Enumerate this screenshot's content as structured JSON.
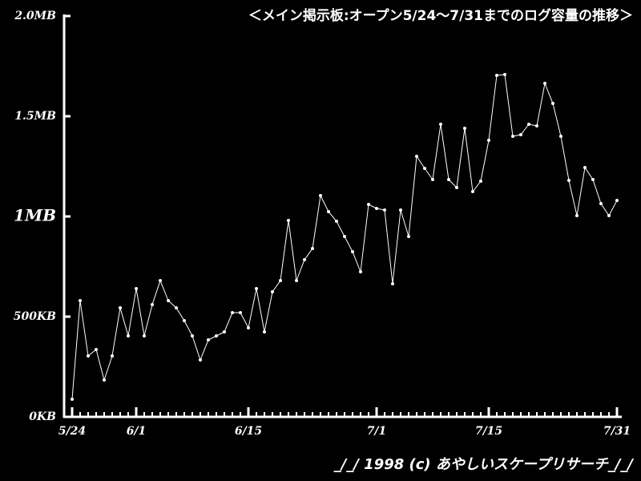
{
  "chart_data": {
    "type": "line",
    "title": "＜メイン掲示板:オープン5/24～7/31までのログ容量の推移＞",
    "footer": "_/_/ 1998 (c) あやしいスケープリサーチ_/_/",
    "categories": [
      "5/24",
      null,
      null,
      null,
      null,
      null,
      null,
      null,
      "6/1",
      null,
      null,
      null,
      null,
      null,
      null,
      null,
      null,
      null,
      null,
      null,
      null,
      null,
      "6/15",
      null,
      null,
      null,
      null,
      null,
      null,
      null,
      null,
      null,
      null,
      null,
      null,
      null,
      null,
      null,
      "7/1",
      null,
      null,
      null,
      null,
      null,
      null,
      null,
      null,
      null,
      null,
      null,
      null,
      null,
      "7/15",
      null,
      null,
      null,
      null,
      null,
      null,
      null,
      null,
      null,
      null,
      null,
      null,
      null,
      null,
      null,
      "7/31"
    ],
    "values": [
      88,
      580,
      304,
      336,
      184,
      304,
      544,
      404,
      640,
      404,
      560,
      680,
      580,
      544,
      480,
      404,
      284,
      384,
      404,
      424,
      520,
      520,
      444,
      640,
      424,
      624,
      680,
      980,
      680,
      784,
      840,
      1104,
      1024,
      976,
      900,
      824,
      724,
      1060,
      1040,
      1032,
      664,
      1032,
      900,
      1300,
      1240,
      1184,
      1460,
      1184,
      1144,
      1440,
      1124,
      1176,
      1380,
      1704,
      1708,
      1400,
      1408,
      1460,
      1452,
      1664,
      1564,
      1400,
      1180,
      1004,
      1244,
      1184,
      1064,
      1004,
      1080
    ],
    "color": "#ffffff",
    "ylim": [
      0,
      2000
    ],
    "yticks": [
      {
        "value": 0,
        "label": "0KB"
      },
      {
        "value": 500,
        "label": "500KB"
      },
      {
        "value": 1000,
        "label": "1MB"
      },
      {
        "value": 1500,
        "label": "1.5MB"
      },
      {
        "value": 2000,
        "label": "2.0MB"
      }
    ]
  }
}
